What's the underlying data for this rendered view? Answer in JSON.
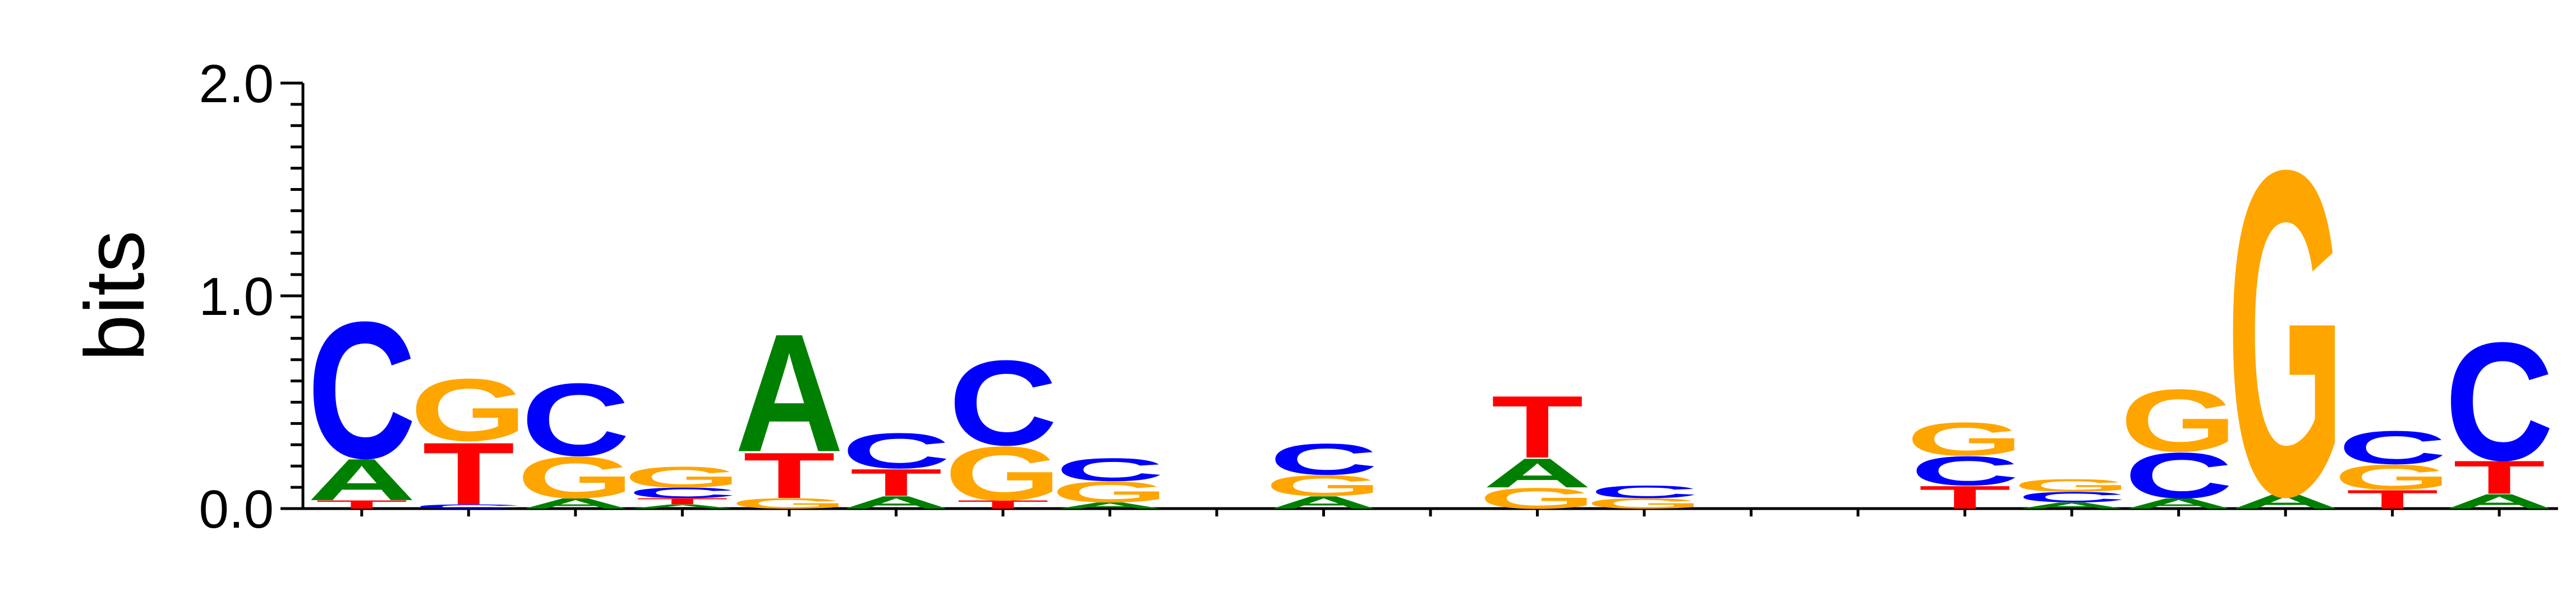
{
  "chart_data": {
    "type": "sequence-logo",
    "ylabel": "bits",
    "ylim": [
      0,
      2
    ],
    "yticks": [
      "0.0",
      "1.0",
      "2.0"
    ],
    "colors": {
      "A": "#008000",
      "C": "#0000ff",
      "G": "#ffa500",
      "T": "#ff0000"
    },
    "positions": [
      [
        {
          "l": "T",
          "h": 0.04
        },
        {
          "l": "A",
          "h": 0.2
        },
        {
          "l": "C",
          "h": 0.66
        }
      ],
      [
        {
          "l": "C",
          "h": 0.02
        },
        {
          "l": "T",
          "h": 0.3
        },
        {
          "l": "G",
          "h": 0.3
        }
      ],
      [
        {
          "l": "A",
          "h": 0.05
        },
        {
          "l": "G",
          "h": 0.2
        },
        {
          "l": "C",
          "h": 0.35
        }
      ],
      [
        {
          "l": "A",
          "h": 0.02
        },
        {
          "l": "T",
          "h": 0.03
        },
        {
          "l": "C",
          "h": 0.05
        },
        {
          "l": "G",
          "h": 0.1
        }
      ],
      [
        {
          "l": "G",
          "h": 0.05
        },
        {
          "l": "T",
          "h": 0.22
        },
        {
          "l": "A",
          "h": 0.57
        }
      ],
      [
        {
          "l": "A",
          "h": 0.06
        },
        {
          "l": "T",
          "h": 0.13
        },
        {
          "l": "C",
          "h": 0.17
        }
      ],
      [
        {
          "l": "T",
          "h": 0.04
        },
        {
          "l": "G",
          "h": 0.26
        },
        {
          "l": "C",
          "h": 0.41
        }
      ],
      [
        {
          "l": "A",
          "h": 0.03
        },
        {
          "l": "G",
          "h": 0.1
        },
        {
          "l": "C",
          "h": 0.11
        }
      ],
      [],
      [
        {
          "l": "A",
          "h": 0.06
        },
        {
          "l": "G",
          "h": 0.1
        },
        {
          "l": "C",
          "h": 0.15
        }
      ],
      [],
      [
        {
          "l": "G",
          "h": 0.1
        },
        {
          "l": "A",
          "h": 0.14
        },
        {
          "l": "T",
          "h": 0.3
        }
      ],
      [
        {
          "l": "G",
          "h": 0.05
        },
        {
          "l": "C",
          "h": 0.06
        }
      ],
      [],
      [],
      [
        {
          "l": "T",
          "h": 0.11
        },
        {
          "l": "C",
          "h": 0.14
        },
        {
          "l": "G",
          "h": 0.16
        }
      ],
      [
        {
          "l": "A",
          "h": 0.03
        },
        {
          "l": "C",
          "h": 0.05
        },
        {
          "l": "G",
          "h": 0.06
        }
      ],
      [
        {
          "l": "A",
          "h": 0.05
        },
        {
          "l": "C",
          "h": 0.22
        },
        {
          "l": "G",
          "h": 0.3
        }
      ],
      [
        {
          "l": "A",
          "h": 0.07
        },
        {
          "l": "G",
          "h": 1.57
        }
      ],
      [
        {
          "l": "T",
          "h": 0.09
        },
        {
          "l": "G",
          "h": 0.12
        },
        {
          "l": "C",
          "h": 0.16
        }
      ],
      [
        {
          "l": "A",
          "h": 0.07
        },
        {
          "l": "T",
          "h": 0.16
        },
        {
          "l": "C",
          "h": 0.57
        }
      ]
    ]
  }
}
